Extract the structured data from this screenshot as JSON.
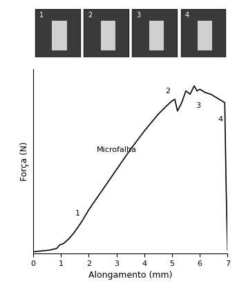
{
  "chart_data": {
    "type": "line",
    "xlabel": "Alongamento (mm)",
    "ylabel": "Força (N)",
    "x": [
      0,
      0.3,
      0.6,
      0.85,
      0.95,
      1.1,
      1.3,
      1.5,
      1.75,
      2.0,
      2.5,
      3.0,
      3.5,
      4.0,
      4.5,
      4.8,
      5.0,
      5.1,
      5.2,
      5.35,
      5.5,
      5.65,
      5.8,
      5.9,
      6.0,
      6.2,
      6.4,
      6.6,
      6.8,
      6.9,
      6.95,
      7.0
    ],
    "values": [
      1,
      1.5,
      2,
      3,
      5,
      6,
      9,
      13,
      19,
      26,
      38,
      50,
      62,
      73,
      83,
      88,
      91,
      92,
      85,
      90,
      97,
      95,
      100,
      97,
      98,
      96,
      95,
      93,
      91,
      90,
      40,
      2
    ],
    "color": "#000000",
    "xlim": [
      0,
      7
    ],
    "xticks": [
      0,
      1,
      2,
      3,
      4,
      5,
      6,
      7
    ],
    "ylim": [
      0,
      110
    ],
    "yticks": [],
    "tick_labels": "x",
    "grid": false,
    "annotations": [
      {
        "text": "1",
        "x": 1.6,
        "y": 24
      },
      {
        "text": "2",
        "x": 4.85,
        "y": 97
      },
      {
        "text": "3",
        "x": 5.95,
        "y": 88
      },
      {
        "text": "4",
        "x": 6.75,
        "y": 80
      },
      {
        "text": "Microfalha",
        "x": 3.0,
        "y": 62
      }
    ],
    "image_labels": [
      "1",
      "2",
      "3",
      "4"
    ]
  }
}
